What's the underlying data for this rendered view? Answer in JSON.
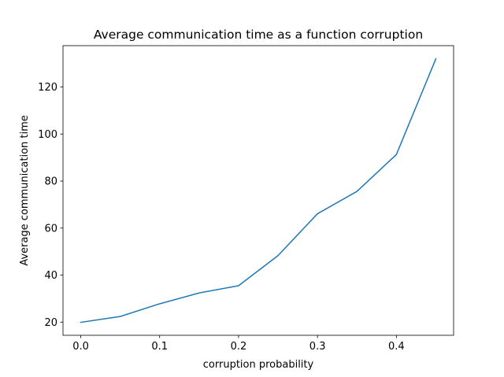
{
  "chart_data": {
    "type": "line",
    "title": "Average communication time as a function corruption",
    "xlabel": "corruption probability",
    "ylabel": "Average communication time",
    "xlim": [
      -0.0225,
      0.4725
    ],
    "ylim": [
      14.4,
      137.6
    ],
    "xticks": [
      0.0,
      0.1,
      0.2,
      0.3,
      0.4
    ],
    "xtick_labels": [
      "0.0",
      "0.1",
      "0.2",
      "0.3",
      "0.4"
    ],
    "yticks": [
      20,
      40,
      60,
      80,
      100,
      120
    ],
    "ytick_labels": [
      "20",
      "40",
      "60",
      "80",
      "100",
      "120"
    ],
    "grid": false,
    "series": [
      {
        "color": "#1f77b4",
        "x": [
          0.0,
          0.05,
          0.1,
          0.15,
          0.2,
          0.25,
          0.3,
          0.35,
          0.4,
          0.45
        ],
        "y": [
          19.9,
          22.4,
          27.8,
          32.4,
          35.5,
          48.3,
          66.1,
          75.6,
          91.3,
          132.0
        ]
      }
    ]
  }
}
